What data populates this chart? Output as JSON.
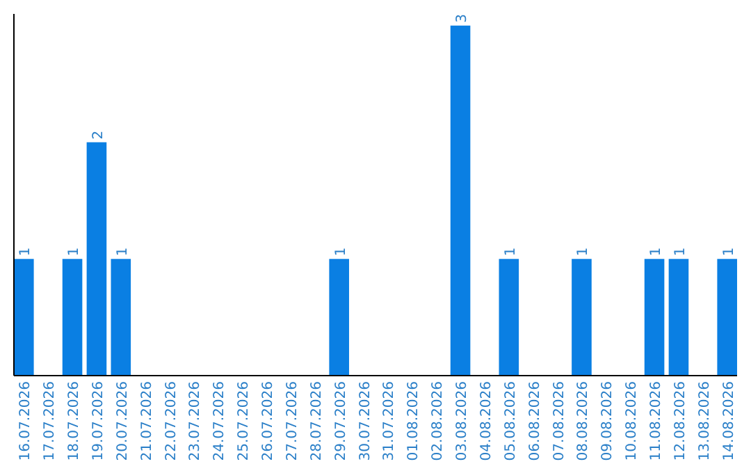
{
  "chart_data": {
    "type": "bar",
    "categories": [
      "16.07.2026",
      "17.07.2026",
      "18.07.2026",
      "19.07.2026",
      "20.07.2026",
      "21.07.2026",
      "22.07.2026",
      "23.07.2026",
      "24.07.2026",
      "25.07.2026",
      "26.07.2026",
      "27.07.2026",
      "28.07.2026",
      "29.07.2026",
      "30.07.2026",
      "31.07.2026",
      "01.08.2026",
      "02.08.2026",
      "03.08.2026",
      "04.08.2026",
      "05.08.2026",
      "06.08.2026",
      "07.08.2026",
      "08.08.2026",
      "09.08.2026",
      "10.08.2026",
      "11.08.2026",
      "12.08.2026",
      "13.08.2026",
      "14.08.2026"
    ],
    "values": [
      1,
      0,
      1,
      2,
      1,
      0,
      0,
      0,
      0,
      0,
      0,
      0,
      0,
      1,
      0,
      0,
      0,
      0,
      3,
      0,
      1,
      0,
      0,
      1,
      0,
      0,
      1,
      1,
      0,
      1
    ],
    "value_labels": [
      "1",
      null,
      "1",
      "2",
      "1",
      null,
      null,
      null,
      null,
      null,
      null,
      null,
      null,
      "1",
      null,
      null,
      null,
      null,
      "3",
      null,
      "1",
      null,
      null,
      "1",
      null,
      null,
      "1",
      "1",
      null,
      "1"
    ],
    "color": "#0a7fe3",
    "ylim": [
      0,
      3.1
    ],
    "tick_labels": "x"
  }
}
